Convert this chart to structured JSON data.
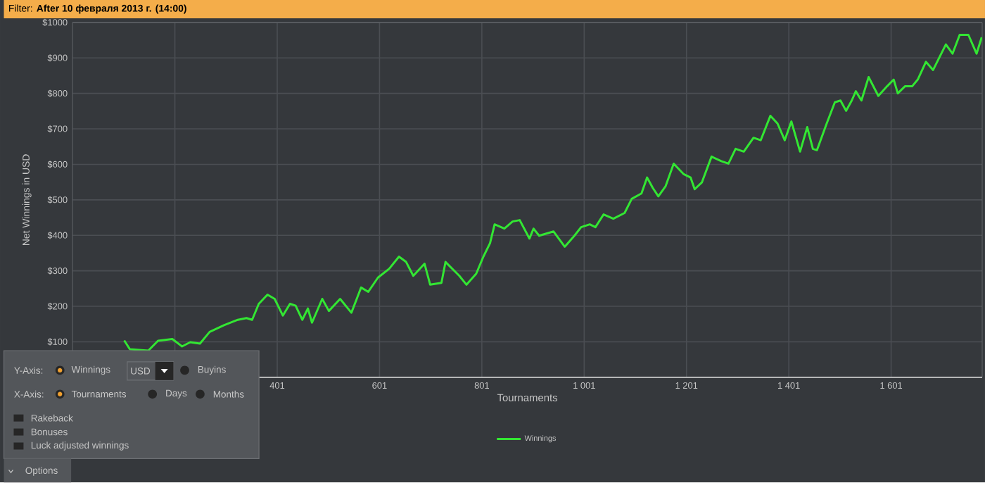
{
  "chart_data": {
    "type": "line",
    "title": "Filter: **After 10 февраля 2013 г. (14:00)**",
    "xlabel": "Tournaments",
    "ylabel": "Net Winnings in USD",
    "xlim": [
      1,
      1779
    ],
    "ylim": [
      0,
      1000
    ],
    "xticks": [
      {
        "value": 201,
        "label": null
      },
      401,
      601,
      801,
      {
        "value": 1001,
        "label": "1 001"
      },
      {
        "value": 1201,
        "label": "1 201"
      },
      {
        "value": 1401,
        "label": "1 401"
      },
      {
        "value": 1601,
        "label": "1 601"
      }
    ],
    "yticks": [
      {
        "value": 100,
        "label": "$100"
      },
      {
        "value": 200,
        "label": "$200"
      },
      {
        "value": 300,
        "label": "$300"
      },
      {
        "value": 400,
        "label": "$400"
      },
      {
        "value": 500,
        "label": "$500"
      },
      {
        "value": 600,
        "label": "$600"
      },
      {
        "value": 700,
        "label": "$700"
      },
      {
        "value": 800,
        "label": "$800"
      },
      {
        "value": 900,
        "label": "$900"
      },
      {
        "value": 1000,
        "label": "$1000"
      }
    ],
    "grid": true,
    "legend": "bottom",
    "series": [
      {
        "name": "Winnings",
        "color": "#33e633",
        "x": [
          102,
          113,
          149,
          168,
          196,
          215,
          231,
          250,
          269,
          297,
          324,
          341,
          352,
          365,
          382,
          396,
          412,
          426,
          437,
          450,
          461,
          469,
          489,
          502,
          524,
          546,
          565,
          579,
          598,
          620,
          639,
          653,
          667,
          689,
          700,
          722,
          730,
          757,
          771,
          790,
          804,
          817,
          826,
          845,
          861,
          875,
          894,
          902,
          913,
          941,
          963,
          982,
          995,
          1012,
          1023,
          1039,
          1058,
          1080,
          1094,
          1113,
          1124,
          1135,
          1146,
          1160,
          1176,
          1195,
          1209,
          1217,
          1231,
          1250,
          1269,
          1283,
          1297,
          1313,
          1332,
          1346,
          1365,
          1379,
          1393,
          1406,
          1423,
          1437,
          1448,
          1456,
          1475,
          1491,
          1502,
          1513,
          1524,
          1532,
          1543,
          1557,
          1576,
          1593,
          1606,
          1614,
          1628,
          1642,
          1653,
          1669,
          1683,
          1708,
          1721,
          1735,
          1752,
          1768,
          1778
        ],
        "values": [
          104,
          79,
          75,
          103,
          108,
          87,
          99,
          95,
          128,
          147,
          162,
          167,
          162,
          207,
          233,
          221,
          174,
          207,
          202,
          162,
          194,
          154,
          221,
          187,
          221,
          182,
          253,
          241,
          281,
          306,
          340,
          325,
          286,
          320,
          261,
          266,
          325,
          286,
          261,
          292,
          340,
          378,
          431,
          419,
          439,
          443,
          391,
          419,
          399,
          411,
          368,
          399,
          423,
          431,
          423,
          459,
          447,
          463,
          503,
          518,
          563,
          534,
          510,
          538,
          602,
          573,
          563,
          530,
          549,
          622,
          609,
          602,
          644,
          636,
          675,
          668,
          737,
          715,
          668,
          721,
          636,
          705,
          644,
          640,
          715,
          775,
          780,
          751,
          780,
          806,
          780,
          846,
          793,
          820,
          839,
          800,
          820,
          820,
          839,
          889,
          866,
          938,
          912,
          965,
          965,
          912,
          958
        ]
      }
    ],
    "annotations": [
      "Y-Axis:",
      "Winnings",
      "USD",
      "Buyins",
      "X-Axis:",
      "Tournaments",
      "Days",
      "Months",
      "Rakeback",
      "Bonuses",
      "Luck adjusted winnings",
      "Options"
    ]
  }
}
